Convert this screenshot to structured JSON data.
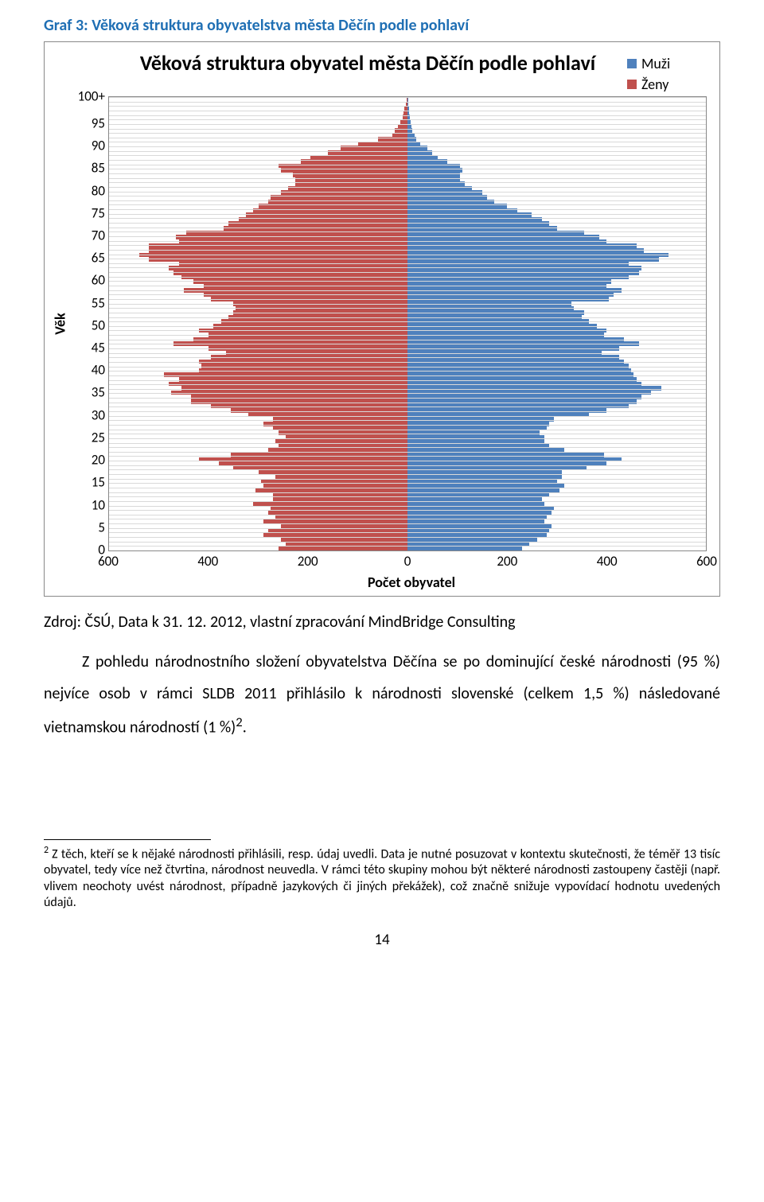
{
  "figure_title": {
    "text": "Graf 3: Věková struktura obyvatelstva města Děčín podle pohlaví",
    "color": "#1f6fb4"
  },
  "chart": {
    "type": "population-pyramid",
    "title": "Věková struktura obyvatel města Děčín podle pohlaví",
    "ylabel": "Věk",
    "xlabel": "Počet obyvatel",
    "legend": [
      {
        "label": "Muži",
        "color": "#4f81bd"
      },
      {
        "label": "Ženy",
        "color": "#c0504d"
      }
    ],
    "y_ticks": [
      "100+",
      "95",
      "90",
      "85",
      "80",
      "75",
      "70",
      "65",
      "60",
      "55",
      "50",
      "45",
      "40",
      "35",
      "30",
      "25",
      "20",
      "15",
      "10",
      "5",
      "0"
    ],
    "x_ticks_left": [
      600,
      400,
      200,
      0
    ],
    "x_ticks_right": [
      200,
      400,
      600
    ],
    "xlim": 600,
    "age_max": 101,
    "grid_color": "#d9d9d9",
    "background": "#ffffff",
    "tick_fontsize": 17,
    "title_fontsize": 26,
    "label_fontsize": 18,
    "women": [
      260,
      245,
      255,
      290,
      280,
      255,
      290,
      265,
      280,
      275,
      310,
      270,
      270,
      305,
      290,
      295,
      265,
      300,
      350,
      380,
      420,
      355,
      280,
      260,
      265,
      245,
      260,
      270,
      290,
      270,
      320,
      355,
      395,
      435,
      435,
      475,
      455,
      480,
      460,
      490,
      420,
      415,
      420,
      395,
      365,
      400,
      470,
      430,
      400,
      420,
      390,
      375,
      360,
      350,
      345,
      350,
      395,
      410,
      450,
      410,
      430,
      455,
      470,
      480,
      460,
      520,
      540,
      520,
      520,
      460,
      465,
      445,
      370,
      360,
      340,
      325,
      310,
      300,
      280,
      275,
      255,
      240,
      225,
      225,
      230,
      255,
      260,
      215,
      195,
      160,
      135,
      100,
      60,
      30,
      25,
      20,
      15,
      10,
      8,
      6,
      4,
      2
    ],
    "men": [
      230,
      245,
      260,
      280,
      285,
      290,
      275,
      280,
      290,
      295,
      275,
      270,
      285,
      305,
      315,
      300,
      310,
      310,
      360,
      400,
      430,
      395,
      315,
      285,
      275,
      275,
      265,
      280,
      285,
      295,
      365,
      400,
      445,
      460,
      470,
      490,
      510,
      470,
      460,
      455,
      450,
      445,
      435,
      425,
      390,
      425,
      465,
      435,
      395,
      400,
      380,
      365,
      350,
      355,
      335,
      330,
      405,
      415,
      430,
      400,
      410,
      445,
      465,
      470,
      445,
      505,
      525,
      475,
      460,
      400,
      385,
      355,
      300,
      285,
      270,
      250,
      220,
      200,
      175,
      160,
      150,
      130,
      115,
      105,
      105,
      110,
      105,
      80,
      60,
      50,
      40,
      25,
      18,
      14,
      10,
      8,
      6,
      5,
      4,
      3,
      2,
      1
    ]
  },
  "source_line": "Zdroj: ČSÚ, Data k 31. 12. 2012, vlastní zpracování MindBridge Consulting",
  "body": "Z pohledu národnostního složení obyvatelstva Děčína se po dominující české národnosti (95 %) nejvíce osob v rámci SLDB 2011 přihlásilo k národnosti slovenské (celkem 1,5 %) následované vietnamskou národností (1 %)",
  "footnote_marker": "2",
  "footnote": "Z těch, kteří se k nějaké národnosti přihlásili, resp. údaj uvedli. Data je nutné posuzovat v kontextu skutečnosti, že téměř 13 tisíc obyvatel, tedy více než čtvrtina, národnost neuvedla. V rámci této skupiny mohou být některé národnosti zastoupeny častěji (např. vlivem neochoty uvést národnost, případně jazykových či jiných překážek), což značně snižuje vypovídací hodnotu uvedených údajů.",
  "page_number": "14"
}
